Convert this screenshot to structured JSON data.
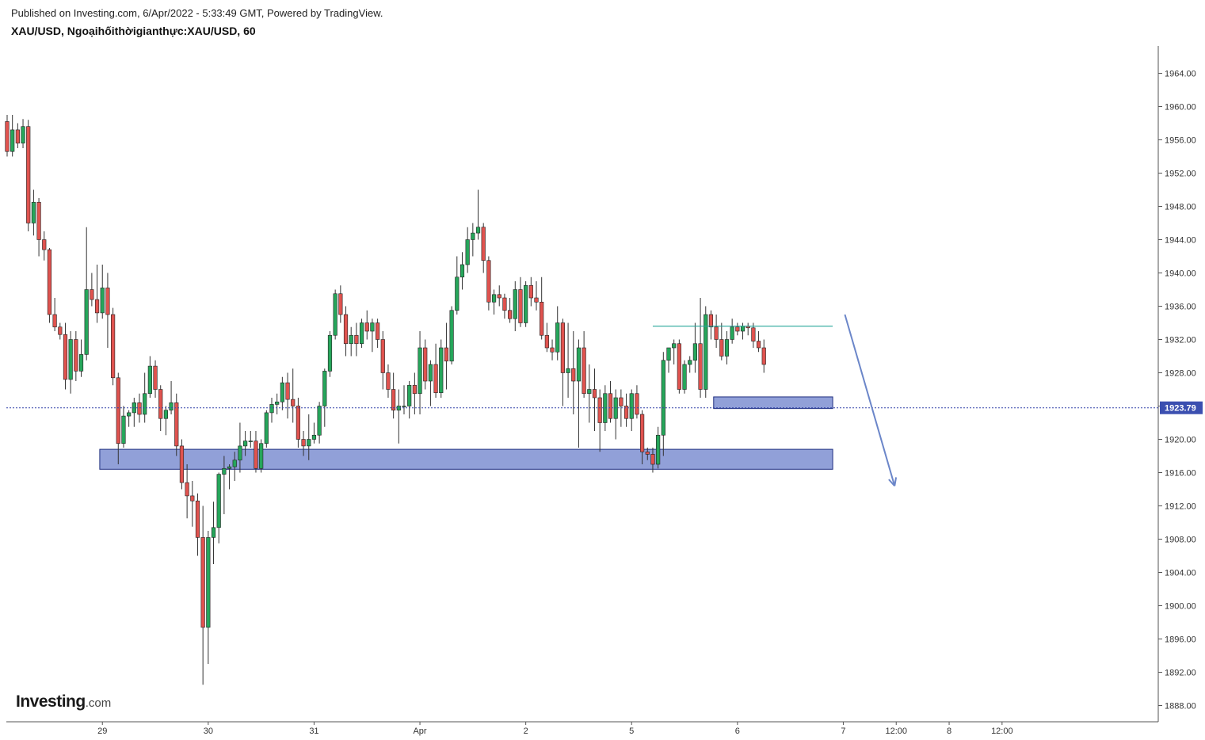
{
  "header": {
    "published": "Published on Investing.com, 6/Apr/2022 - 5:33:49 GMT, Powered by TradingView.",
    "symbol_line": "XAU/USD, Ngoạihốithờigianthực:XAU/USD, 60"
  },
  "logo": {
    "brand": "Investing",
    "domain": ".com"
  },
  "colors": {
    "up": "#26a65b",
    "down": "#e0534f",
    "zone_fill": "#8b9bd6",
    "zone_stroke": "#1f2f80",
    "arrow": "#6b86c9",
    "hline": "#26a69a",
    "price_line": "#3344aa",
    "price_label_bg": "#3b4fb0"
  },
  "chart_data": {
    "type": "candlestick",
    "interval": "60",
    "ylim": [
      1886,
      1970
    ],
    "y_ticks": [
      "1888.00",
      "1892.00",
      "1896.00",
      "1900.00",
      "1904.00",
      "1908.00",
      "1912.00",
      "1916.00",
      "1920.00",
      "1924.00",
      "1928.00",
      "1932.00",
      "1936.00",
      "1940.00",
      "1944.00",
      "1948.00",
      "1952.00",
      "1956.00",
      "1960.00",
      "1964.00"
    ],
    "x_ticks": [
      {
        "label": "29",
        "bar": 18
      },
      {
        "label": "30",
        "bar": 38
      },
      {
        "label": "31",
        "bar": 58
      },
      {
        "label": "Apr",
        "bar": 78
      },
      {
        "label": "2",
        "bar": 98
      },
      {
        "label": "5",
        "bar": 118
      },
      {
        "label": "6",
        "bar": 138
      },
      {
        "label": "7",
        "bar": 158
      },
      {
        "label": "12:00",
        "bar": 168
      },
      {
        "label": "8",
        "bar": 178
      },
      {
        "label": "12:00",
        "bar": 188
      }
    ],
    "current_price": {
      "value": 1923.79,
      "label": "1923.79"
    },
    "candles": [
      [
        1958.2,
        1959.0,
        1954.0,
        1954.6
      ],
      [
        1954.6,
        1959.0,
        1954.0,
        1957.2
      ],
      [
        1957.2,
        1958.0,
        1955.0,
        1955.6
      ],
      [
        1955.6,
        1958.5,
        1955.0,
        1957.6
      ],
      [
        1957.6,
        1958.4,
        1945.0,
        1946.0
      ],
      [
        1946.0,
        1950.0,
        1944.5,
        1948.5
      ],
      [
        1948.5,
        1949.0,
        1942.0,
        1944.0
      ],
      [
        1944.0,
        1945.0,
        1941.5,
        1942.8
      ],
      [
        1942.8,
        1943.0,
        1934.0,
        1935.0
      ],
      [
        1935.0,
        1937.0,
        1933.0,
        1933.5
      ],
      [
        1933.5,
        1934.0,
        1932.0,
        1932.6
      ],
      [
        1932.6,
        1934.0,
        1926.0,
        1927.2
      ],
      [
        1927.2,
        1933.0,
        1925.5,
        1932.0
      ],
      [
        1932.0,
        1933.0,
        1927.0,
        1928.2
      ],
      [
        1928.2,
        1932.0,
        1927.5,
        1930.2
      ],
      [
        1930.2,
        1945.5,
        1929.5,
        1938.0
      ],
      [
        1938.0,
        1940.0,
        1936.0,
        1936.8
      ],
      [
        1936.8,
        1941.0,
        1934.0,
        1935.2
      ],
      [
        1935.2,
        1941.0,
        1934.5,
        1938.2
      ],
      [
        1938.2,
        1940.0,
        1931.0,
        1935.0
      ],
      [
        1935.0,
        1935.8,
        1926.5,
        1927.4
      ],
      [
        1927.4,
        1928.0,
        1917.0,
        1919.5
      ],
      [
        1919.5,
        1924.0,
        1919.0,
        1922.8
      ],
      [
        1922.8,
        1923.5,
        1921.5,
        1923.2
      ],
      [
        1923.2,
        1925.0,
        1921.5,
        1924.4
      ],
      [
        1924.4,
        1925.5,
        1922.0,
        1923.0
      ],
      [
        1923.0,
        1928.0,
        1922.0,
        1925.5
      ],
      [
        1925.5,
        1930.0,
        1925.0,
        1928.8
      ],
      [
        1928.8,
        1929.5,
        1925.0,
        1926.0
      ],
      [
        1926.0,
        1926.5,
        1921.0,
        1922.5
      ],
      [
        1922.5,
        1924.0,
        1920.5,
        1923.5
      ],
      [
        1923.5,
        1927.0,
        1923.0,
        1924.4
      ],
      [
        1924.4,
        1925.5,
        1918.0,
        1919.2
      ],
      [
        1919.2,
        1920.0,
        1914.0,
        1914.8
      ],
      [
        1914.8,
        1917.0,
        1910.5,
        1913.2
      ],
      [
        1913.2,
        1915.0,
        1909.5,
        1912.6
      ],
      [
        1912.6,
        1913.5,
        1906.0,
        1908.2
      ],
      [
        1908.2,
        1912.0,
        1890.5,
        1897.4
      ],
      [
        1897.4,
        1909.0,
        1893.0,
        1908.2
      ],
      [
        1908.2,
        1912.5,
        1905.0,
        1909.4
      ],
      [
        1909.4,
        1916.0,
        1907.5,
        1915.8
      ],
      [
        1915.8,
        1918.0,
        1911.0,
        1916.5
      ],
      [
        1916.5,
        1917.0,
        1914.0,
        1916.7
      ],
      [
        1916.7,
        1918.5,
        1915.0,
        1917.5
      ],
      [
        1917.5,
        1922.0,
        1916.0,
        1919.2
      ],
      [
        1919.2,
        1921.0,
        1918.0,
        1919.8
      ],
      [
        1919.8,
        1921.0,
        1919.0,
        1919.8
      ],
      [
        1919.8,
        1921.0,
        1916.0,
        1916.5
      ],
      [
        1916.5,
        1920.0,
        1916.0,
        1919.5
      ],
      [
        1919.5,
        1923.5,
        1919.0,
        1923.2
      ],
      [
        1923.2,
        1925.0,
        1922.0,
        1924.2
      ],
      [
        1924.2,
        1925.5,
        1923.0,
        1924.5
      ],
      [
        1924.5,
        1927.5,
        1923.5,
        1926.8
      ],
      [
        1926.8,
        1928.0,
        1922.5,
        1924.8
      ],
      [
        1924.8,
        1928.5,
        1922.0,
        1924.0
      ],
      [
        1924.0,
        1925.0,
        1919.0,
        1920.0
      ],
      [
        1920.0,
        1921.0,
        1918.0,
        1919.2
      ],
      [
        1919.2,
        1923.0,
        1917.5,
        1920.0
      ],
      [
        1920.0,
        1922.0,
        1919.5,
        1920.5
      ],
      [
        1920.5,
        1924.5,
        1919.5,
        1924.0
      ],
      [
        1924.0,
        1928.5,
        1921.5,
        1928.2
      ],
      [
        1928.2,
        1933.0,
        1927.5,
        1932.5
      ],
      [
        1932.5,
        1938.0,
        1932.0,
        1937.5
      ],
      [
        1937.5,
        1938.5,
        1934.0,
        1935.0
      ],
      [
        1935.0,
        1936.0,
        1930.0,
        1931.5
      ],
      [
        1931.5,
        1933.5,
        1930.0,
        1932.5
      ],
      [
        1932.5,
        1934.0,
        1930.0,
        1931.5
      ],
      [
        1931.5,
        1934.5,
        1931.0,
        1934.0
      ],
      [
        1934.0,
        1935.5,
        1932.0,
        1933.0
      ],
      [
        1933.0,
        1934.5,
        1930.5,
        1934.0
      ],
      [
        1934.0,
        1934.5,
        1931.0,
        1932.0
      ],
      [
        1932.0,
        1933.0,
        1926.0,
        1928.0
      ],
      [
        1928.0,
        1929.0,
        1925.0,
        1926.0
      ],
      [
        1926.0,
        1928.0,
        1922.5,
        1923.5
      ],
      [
        1923.5,
        1926.0,
        1919.5,
        1924.0
      ],
      [
        1924.0,
        1926.5,
        1923.0,
        1924.0
      ],
      [
        1924.0,
        1927.0,
        1922.5,
        1926.5
      ],
      [
        1926.5,
        1928.0,
        1923.0,
        1925.5
      ],
      [
        1925.5,
        1933.0,
        1923.0,
        1931.0
      ],
      [
        1931.0,
        1932.0,
        1926.0,
        1927.0
      ],
      [
        1927.0,
        1929.5,
        1924.0,
        1929.0
      ],
      [
        1929.0,
        1931.5,
        1925.0,
        1925.6
      ],
      [
        1925.6,
        1932.0,
        1925.0,
        1931.0
      ],
      [
        1931.0,
        1934.0,
        1926.0,
        1929.4
      ],
      [
        1929.4,
        1936.0,
        1929.0,
        1935.5
      ],
      [
        1935.5,
        1942.0,
        1935.0,
        1939.5
      ],
      [
        1939.5,
        1942.5,
        1938.0,
        1941.0
      ],
      [
        1941.0,
        1945.5,
        1940.0,
        1944.0
      ],
      [
        1944.0,
        1946.0,
        1942.0,
        1944.8
      ],
      [
        1944.8,
        1950.0,
        1944.0,
        1945.5
      ],
      [
        1945.5,
        1946.0,
        1940.0,
        1941.5
      ],
      [
        1941.5,
        1942.0,
        1935.5,
        1936.5
      ],
      [
        1936.5,
        1938.0,
        1935.0,
        1937.4
      ],
      [
        1937.4,
        1938.5,
        1936.0,
        1937.0
      ],
      [
        1937.0,
        1937.5,
        1934.5,
        1935.5
      ],
      [
        1935.5,
        1937.0,
        1934.0,
        1934.5
      ],
      [
        1934.5,
        1939.0,
        1933.0,
        1938.0
      ],
      [
        1938.0,
        1939.5,
        1933.5,
        1934.0
      ],
      [
        1934.0,
        1939.0,
        1933.5,
        1938.5
      ],
      [
        1938.5,
        1939.5,
        1936.0,
        1937.0
      ],
      [
        1937.0,
        1939.0,
        1935.5,
        1936.5
      ],
      [
        1936.5,
        1939.5,
        1932.0,
        1932.5
      ],
      [
        1932.5,
        1934.0,
        1930.5,
        1931.0
      ],
      [
        1931.0,
        1932.0,
        1929.5,
        1930.5
      ],
      [
        1930.5,
        1936.0,
        1929.5,
        1934.0
      ],
      [
        1934.0,
        1934.5,
        1924.0,
        1928.0
      ],
      [
        1928.0,
        1934.0,
        1925.0,
        1928.5
      ],
      [
        1928.5,
        1933.0,
        1923.0,
        1927.0
      ],
      [
        1927.0,
        1932.0,
        1919.0,
        1931.0
      ],
      [
        1931.0,
        1933.0,
        1925.0,
        1925.5
      ],
      [
        1925.5,
        1929.0,
        1922.0,
        1926.0
      ],
      [
        1926.0,
        1928.5,
        1921.0,
        1925.0
      ],
      [
        1925.0,
        1926.0,
        1918.5,
        1922.0
      ],
      [
        1922.0,
        1926.5,
        1921.0,
        1925.5
      ],
      [
        1925.5,
        1927.0,
        1922.0,
        1922.5
      ],
      [
        1922.5,
        1926.0,
        1920.0,
        1925.0
      ],
      [
        1925.0,
        1926.0,
        1921.5,
        1924.0
      ],
      [
        1924.0,
        1925.5,
        1921.5,
        1922.5
      ],
      [
        1922.5,
        1926.0,
        1921.0,
        1925.5
      ],
      [
        1925.5,
        1926.5,
        1922.5,
        1923.0
      ],
      [
        1923.0,
        1923.5,
        1917.0,
        1918.5
      ],
      [
        1918.5,
        1919.0,
        1917.5,
        1918.2
      ],
      [
        1918.2,
        1919.0,
        1916.0,
        1917.0
      ],
      [
        1917.0,
        1921.5,
        1916.5,
        1920.5
      ],
      [
        1920.5,
        1930.5,
        1918.0,
        1929.5
      ],
      [
        1929.5,
        1931.0,
        1928.0,
        1931.0
      ],
      [
        1931.0,
        1932.0,
        1929.0,
        1931.5
      ],
      [
        1931.5,
        1932.0,
        1925.5,
        1926.0
      ],
      [
        1926.0,
        1929.5,
        1925.5,
        1929.0
      ],
      [
        1929.0,
        1930.0,
        1928.0,
        1929.5
      ],
      [
        1929.5,
        1934.0,
        1928.0,
        1931.5
      ],
      [
        1931.5,
        1937.0,
        1925.0,
        1926.0
      ],
      [
        1926.0,
        1936.0,
        1925.0,
        1935.0
      ],
      [
        1935.0,
        1935.5,
        1932.0,
        1933.5
      ],
      [
        1933.5,
        1935.0,
        1931.0,
        1932.0
      ],
      [
        1932.0,
        1934.0,
        1929.5,
        1930.0
      ],
      [
        1930.0,
        1933.0,
        1929.0,
        1932.0
      ],
      [
        1932.0,
        1934.5,
        1931.5,
        1933.5
      ],
      [
        1933.5,
        1934.0,
        1932.5,
        1933.0
      ],
      [
        1933.0,
        1934.0,
        1932.0,
        1933.6
      ],
      [
        1933.6,
        1934.0,
        1932.5,
        1933.4
      ],
      [
        1933.4,
        1934.0,
        1931.0,
        1931.8
      ],
      [
        1931.8,
        1933.0,
        1930.5,
        1931.0
      ],
      [
        1931.0,
        1932.0,
        1928.0,
        1929.0
      ]
    ]
  },
  "annotations": {
    "zones": [
      {
        "y_top": 1918.8,
        "y_bottom": 1916.4,
        "bar_start": 17.5,
        "bar_end": 156
      },
      {
        "y_top": 1925.1,
        "y_bottom": 1923.7,
        "bar_start": 133.5,
        "bar_end": 156
      }
    ],
    "hline": {
      "y": 1933.6,
      "bar_start": 122,
      "bar_end": 156
    },
    "arrow": {
      "from": {
        "bar": 158.3,
        "y": 1935.0
      },
      "to": {
        "bar": 167.7,
        "y": 1914.4
      }
    }
  }
}
